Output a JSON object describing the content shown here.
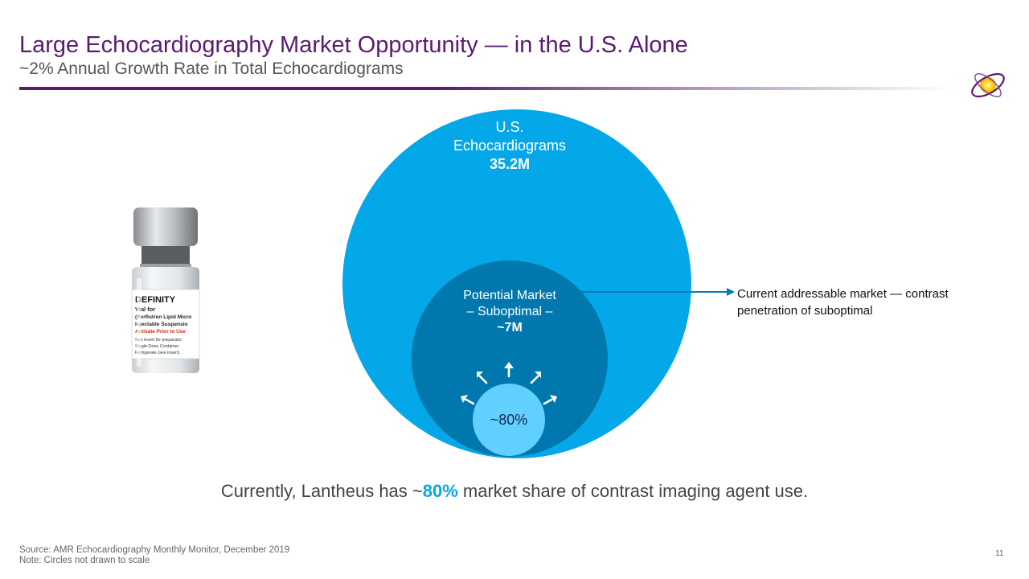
{
  "header": {
    "title": "Large Echocardiography Market Opportunity — in the U.S. Alone",
    "subtitle": "~2% Annual Growth Rate in Total Echocardiograms"
  },
  "product": {
    "brand": "DEFINITY",
    "lines": [
      "Vial for",
      "(Perflutren Lipid Micro",
      "Injectable Suspensio",
      "Activate Prior to Use",
      "See insert for preparatio",
      "Single-Dose Container.",
      "Refrigerate (see insert)."
    ]
  },
  "diagram": {
    "outer": {
      "line1": "U.S.",
      "line2": "Echocardiograms",
      "value": "35.2M"
    },
    "middle": {
      "line1": "Potential Market",
      "line2": "– Suboptimal –",
      "value": "~7M"
    },
    "inner": {
      "value": "~80%"
    },
    "callout": "Current addressable market — contrast penetration of suboptimal"
  },
  "statement": {
    "before": "Currently, Lantheus has ~",
    "highlight": "80%",
    "after": " market share of contrast imaging agent use."
  },
  "footer": {
    "source": "Source:  AMR Echocardiography Monthly Monitor, December 2019",
    "note": "Note: Circles not drawn to scale",
    "page": "11"
  },
  "colors": {
    "title": "#5b1a72",
    "outer_circle": "#04a7e8",
    "middle_circle": "#0078ad",
    "inner_circle": "#5fd0ff",
    "highlight": "#04a7e8"
  }
}
